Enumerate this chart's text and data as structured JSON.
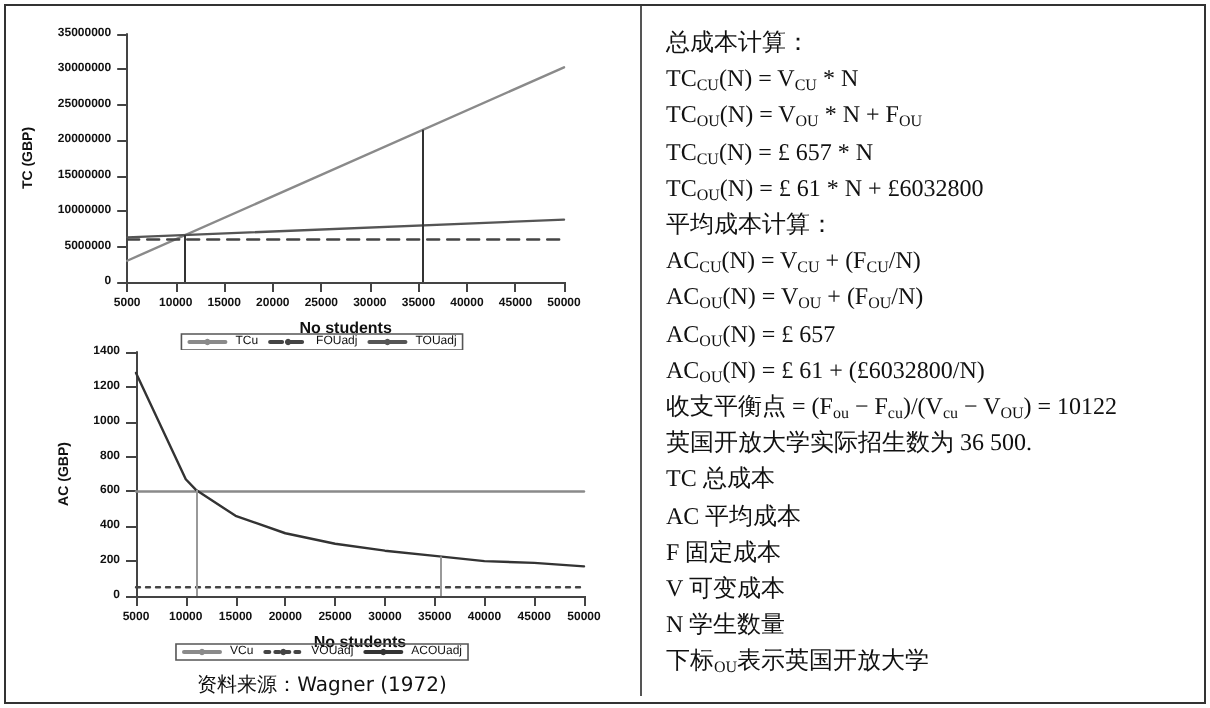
{
  "chart_data": [
    {
      "type": "line",
      "xlabel": "No students",
      "ylabel": "TC (GBP)",
      "xlim": [
        5000,
        50000
      ],
      "xticks": [
        5000,
        10000,
        15000,
        20000,
        25000,
        30000,
        35000,
        40000,
        45000,
        50000
      ],
      "ylim": [
        0,
        35000000
      ],
      "yticks": [
        0,
        5000000,
        10000000,
        15000000,
        20000000,
        25000000,
        30000000,
        35000000
      ],
      "grid": false,
      "legend": "bottom",
      "marker": "none",
      "series": [
        {
          "name": "TCu",
          "color": "#8a8a8a",
          "line_style": "solid",
          "x": [
            5000,
            50000
          ],
          "values": [
            3000000,
            30300000
          ]
        },
        {
          "name": "FOUadj",
          "color": "#444444",
          "line_style": "dashed",
          "x": [
            5000,
            50000
          ],
          "values": [
            6000000,
            6000000
          ]
        },
        {
          "name": "TOUadj",
          "color": "#555555",
          "line_style": "solid",
          "x": [
            5000,
            50000
          ],
          "values": [
            6300000,
            8800000
          ]
        }
      ],
      "ref_lines": [
        {
          "axis": "x",
          "value": 11000,
          "color": "#333333"
        },
        {
          "axis": "x",
          "value": 35500,
          "color": "#333333"
        }
      ]
    },
    {
      "type": "line",
      "xlabel": "No students",
      "ylabel": "AC (GBP)",
      "xlim": [
        5000,
        50000
      ],
      "xticks": [
        5000,
        10000,
        15000,
        20000,
        25000,
        30000,
        35000,
        40000,
        45000,
        50000
      ],
      "ylim": [
        0,
        1400
      ],
      "yticks": [
        0,
        200,
        400,
        600,
        800,
        1000,
        1200,
        1400
      ],
      "grid": false,
      "legend": "bottom",
      "marker": "none",
      "series": [
        {
          "name": "VCu",
          "color": "#8a8a8a",
          "line_style": "solid",
          "x": [
            5000,
            50000
          ],
          "values": [
            600,
            600
          ]
        },
        {
          "name": "VOUadj",
          "color": "#444444",
          "line_style": "dotted",
          "x": [
            5000,
            50000
          ],
          "values": [
            50,
            50
          ]
        },
        {
          "name": "ACOUadj",
          "color": "#333333",
          "line_style": "solid",
          "x": [
            5000,
            10000,
            11000,
            15000,
            20000,
            25000,
            30000,
            35000,
            40000,
            45000,
            50000
          ],
          "values": [
            1280,
            670,
            610,
            460,
            360,
            300,
            260,
            230,
            200,
            190,
            170
          ]
        }
      ],
      "ref_lines": [
        {
          "axis": "x",
          "value": 11000,
          "color": "#999999"
        },
        {
          "axis": "x",
          "value": 35500,
          "color": "#999999"
        }
      ],
      "annotations": [
        "资料来源：Wagner (1972)"
      ]
    },
    {
      "type": "other",
      "annotations": [
        "总成本计算：",
        "TC$_{CU}$(N) = V$_{CU}$ * N",
        "TC$_{OU}$(N) = V$_{OU}$ * N + F$_{OU}$",
        "TC$_{CU}$(N) = £ 657 * N",
        "TC$_{OU}$(N) = £ 61 * N + £6032800",
        "平均成本计算：",
        "AC$_{CU}$(N) = V$_{CU}$ + (F$_{CU}$/N)",
        "AC$_{OU}$(N) = V$_{OU}$ + (F$_{OU}$/N)",
        "AC$_{OU}$(N) = £ 657",
        "AC$_{OU}$(N) = £ 61 + (£6032800/N)",
        "收支平衡点 = (F$_{ou}$ − F$_{cu}$)/(V$_{cu}$ − V$_{OU}$) = 10122",
        "英国开放大学实际招生数为 36 500.",
        "TC 总成本",
        "AC 平均成本",
        "F 固定成本",
        "V 可变成本",
        "N 学生数量",
        "下标$_{OU}$表示英国开放大学"
      ]
    }
  ]
}
